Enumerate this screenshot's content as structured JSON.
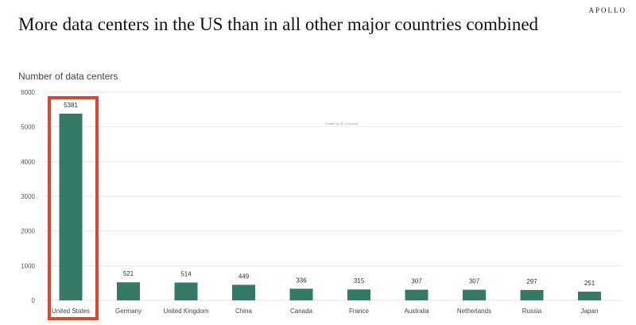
{
  "brand": "APOLLO",
  "title": "More data centers in the US than in all other major countries combined",
  "watermark": "Posted by @_Investinq",
  "chart_data": {
    "type": "bar",
    "title": "More data centers in the US than in all other major countries combined",
    "ylabel": "Number of data centers",
    "xlabel": "",
    "categories": [
      "United States",
      "Germany",
      "United Kingdom",
      "China",
      "Canada",
      "France",
      "Australia",
      "Netherlands",
      "Russia",
      "Japan"
    ],
    "values": [
      5381,
      521,
      514,
      449,
      336,
      315,
      307,
      307,
      297,
      251
    ],
    "ylim": [
      0,
      6000
    ],
    "yticks": [
      0,
      1000,
      2000,
      3000,
      4000,
      5000,
      6000
    ],
    "grid": true,
    "bar_color": "#347a64",
    "highlight": {
      "category": "United States",
      "color": "#e0452b"
    }
  }
}
